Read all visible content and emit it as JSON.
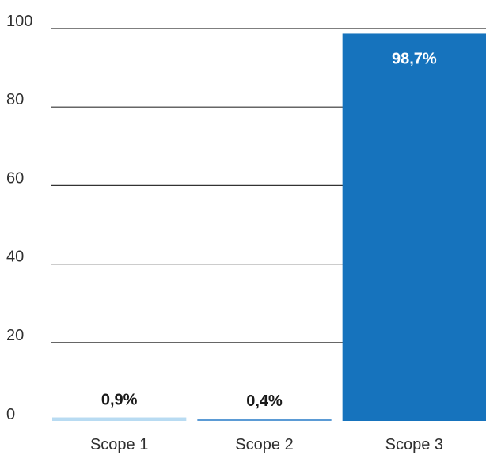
{
  "chart_data": {
    "type": "bar",
    "title": "",
    "xlabel": "",
    "ylabel": "",
    "categories": [
      "Scope 1",
      "Scope 2",
      "Scope 3"
    ],
    "values": [
      0.9,
      0.4,
      98.7
    ],
    "value_labels": [
      "0,9%",
      "0,4%",
      "98,7%"
    ],
    "bar_colors": [
      "#b8dbf2",
      "#5b9bd5",
      "#1673bd"
    ],
    "value_label_colors": [
      "#1a1a1a",
      "#1a1a1a",
      "#ffffff"
    ],
    "ylim": [
      0,
      100
    ],
    "yticks": [
      0,
      20,
      40,
      60,
      80,
      100
    ],
    "ytick_labels": [
      "0",
      "20",
      "40",
      "60",
      "80",
      "100"
    ],
    "grid": true,
    "grid_color": "#333333",
    "legend": "none"
  }
}
